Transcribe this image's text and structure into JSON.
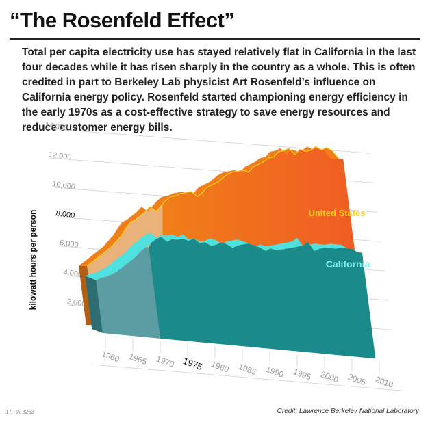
{
  "header": {
    "title": "“The Rosenfeld Effect”",
    "description": "Total per capita electricity use has stayed relatively flat in California in the last four decades while it has risen sharply in the country as a whole. This is often credited in part to Berkeley Lab physicist Art Rosenfeld’s influence on California energy policy. Rosenfeld started championing energy efficiency in the early 1970s as a cost-effective strategy to save energy resources and reduce customer energy bills."
  },
  "footer": {
    "id": "17-PA-3263",
    "credit": "Credit: Lawrence Berkeley National Laboratory"
  },
  "colors": {
    "us_early": "#e8b27a",
    "us_late": "#f05a24",
    "us_top": "#f07f1a",
    "ca_early": "#5b9da3",
    "ca_late": "#1a8a8a",
    "ca_top": "#4fe0e0",
    "ca_label": "#7ff0f0",
    "us_label": "#f7d21c"
  },
  "chart_data": {
    "type": "area",
    "title": "",
    "ylabel": "kilowatt hours per person",
    "xlabel": "",
    "y_ticks": [
      "2,000",
      "4,000",
      "6,000",
      "8,000",
      "10,000",
      "12,000",
      "14,000"
    ],
    "x_ticks": [
      "1960",
      "1965",
      "1970",
      "1975",
      "1980",
      "1985",
      "1990",
      "1995",
      "2000",
      "2005",
      "2010"
    ],
    "highlight_year": "1975",
    "highlight_value": "8,000",
    "ylim": [
      0,
      14000
    ],
    "xlim": [
      1960,
      2010
    ],
    "x": [
      1960,
      1961,
      1962,
      1963,
      1964,
      1965,
      1966,
      1967,
      1968,
      1969,
      1970,
      1971,
      1972,
      1973,
      1974,
      1975,
      1976,
      1977,
      1978,
      1979,
      1980,
      1981,
      1982,
      1983,
      1984,
      1985,
      1986,
      1987,
      1988,
      1989,
      1990,
      1991,
      1992,
      1993,
      1994,
      1995,
      1996,
      1997,
      1998,
      1999,
      2000,
      2001,
      2002,
      2003,
      2004,
      2005,
      2006,
      2007,
      2008,
      2009
    ],
    "series": [
      {
        "name": "United States",
        "values": [
          4000,
          4300,
          4600,
          4900,
          5200,
          5500,
          5900,
          6300,
          6800,
          7300,
          7500,
          7800,
          8100,
          8500,
          8200,
          8600,
          9000,
          9300,
          9400,
          9600,
          9700,
          9800,
          9500,
          9800,
          10200,
          10400,
          10600,
          10900,
          11200,
          11400,
          11500,
          11600,
          11500,
          11900,
          12100,
          12300,
          12600,
          12700,
          13100,
          13200,
          13400,
          13000,
          13400,
          13300,
          13400,
          13700,
          13500,
          13700,
          13500,
          13000
        ]
      },
      {
        "name": "California",
        "values": [
          3600,
          3800,
          3900,
          4100,
          4300,
          4600,
          4900,
          5200,
          5500,
          5900,
          6200,
          6500,
          6800,
          7000,
          6700,
          6900,
          6900,
          7000,
          6900,
          7100,
          6800,
          6900,
          6700,
          6800,
          7000,
          6900,
          6700,
          6900,
          7000,
          7100,
          7000,
          6900,
          6700,
          6900,
          6800,
          6900,
          7000,
          7100,
          7200,
          7300,
          7600,
          7000,
          7200,
          7300,
          7300,
          7300,
          7400,
          7400,
          7400,
          7200
        ]
      }
    ]
  }
}
